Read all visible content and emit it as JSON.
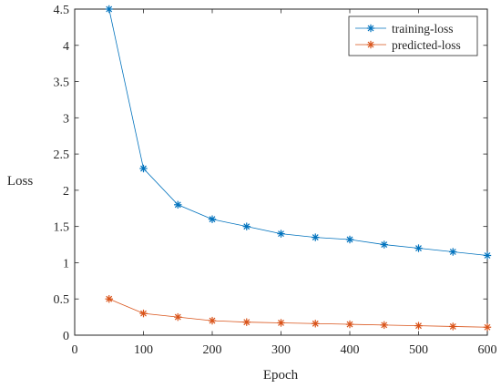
{
  "chart_data": {
    "type": "line",
    "xlabel": "Epoch",
    "ylabel": "Loss",
    "xlim": [
      0,
      600
    ],
    "ylim": [
      0,
      4.5
    ],
    "x_ticks": [
      "0",
      "100",
      "200",
      "300",
      "400",
      "500",
      "600"
    ],
    "y_ticks": [
      "0",
      "0.5",
      "1",
      "1.5",
      "2",
      "2.5",
      "3",
      "3.5",
      "4",
      "4.5"
    ],
    "x": [
      50,
      100,
      150,
      200,
      250,
      300,
      350,
      400,
      450,
      500,
      550,
      600
    ],
    "series": [
      {
        "name": "training-loss",
        "color": "#0072BD",
        "marker": "asterisk",
        "values": [
          4.5,
          2.3,
          1.8,
          1.6,
          1.5,
          1.4,
          1.35,
          1.32,
          1.25,
          1.2,
          1.15,
          1.1
        ]
      },
      {
        "name": "predicted-loss",
        "color": "#D95319",
        "marker": "asterisk",
        "values": [
          0.5,
          0.3,
          0.25,
          0.2,
          0.18,
          0.17,
          0.16,
          0.15,
          0.14,
          0.13,
          0.12,
          0.11
        ]
      }
    ],
    "grid": false,
    "legend_position": "top-right"
  }
}
